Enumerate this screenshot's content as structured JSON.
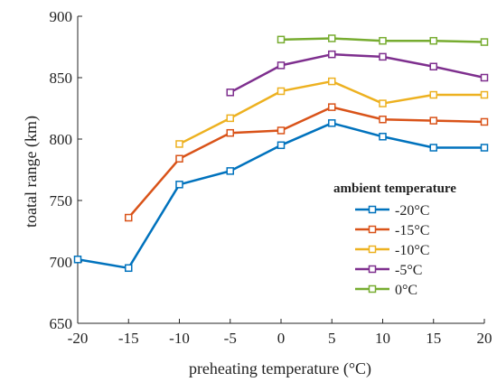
{
  "chart_data": {
    "type": "line",
    "xlabel": "preheating temperature (°C)",
    "ylabel": "toatal range (km)",
    "xlim": [
      -20,
      20
    ],
    "ylim": [
      650,
      900
    ],
    "xticks": [
      -20,
      -15,
      -10,
      -5,
      0,
      5,
      10,
      15,
      20
    ],
    "yticks": [
      650,
      700,
      750,
      800,
      850,
      900
    ],
    "grid": false,
    "legend": {
      "title": "ambient temperature",
      "placement": "right-center"
    },
    "series": [
      {
        "name": "-20°C",
        "color": "#0072BD",
        "marker": "square-open",
        "x": [
          -20,
          -15,
          -10,
          -5,
          0,
          5,
          10,
          15,
          20
        ],
        "y": [
          702,
          695,
          763,
          774,
          795,
          813,
          802,
          793,
          793
        ]
      },
      {
        "name": "-15°C",
        "color": "#D95319",
        "marker": "square-open",
        "x": [
          -15,
          -10,
          -5,
          0,
          5,
          10,
          15,
          20
        ],
        "y": [
          736,
          784,
          805,
          807,
          826,
          816,
          815,
          814
        ]
      },
      {
        "name": "-10°C",
        "color": "#EDB120",
        "marker": "square-open",
        "x": [
          -10,
          -5,
          0,
          5,
          10,
          15,
          20
        ],
        "y": [
          796,
          817,
          839,
          847,
          829,
          836,
          836
        ]
      },
      {
        "name": "-5°C",
        "color": "#7E2F8E",
        "marker": "square-open",
        "x": [
          -5,
          0,
          5,
          10,
          15,
          20
        ],
        "y": [
          838,
          860,
          869,
          867,
          859,
          850
        ]
      },
      {
        "name": "0°C",
        "color": "#77AC30",
        "marker": "square-open",
        "x": [
          0,
          5,
          10,
          15,
          20
        ],
        "y": [
          881,
          882,
          880,
          880,
          879
        ]
      }
    ]
  }
}
